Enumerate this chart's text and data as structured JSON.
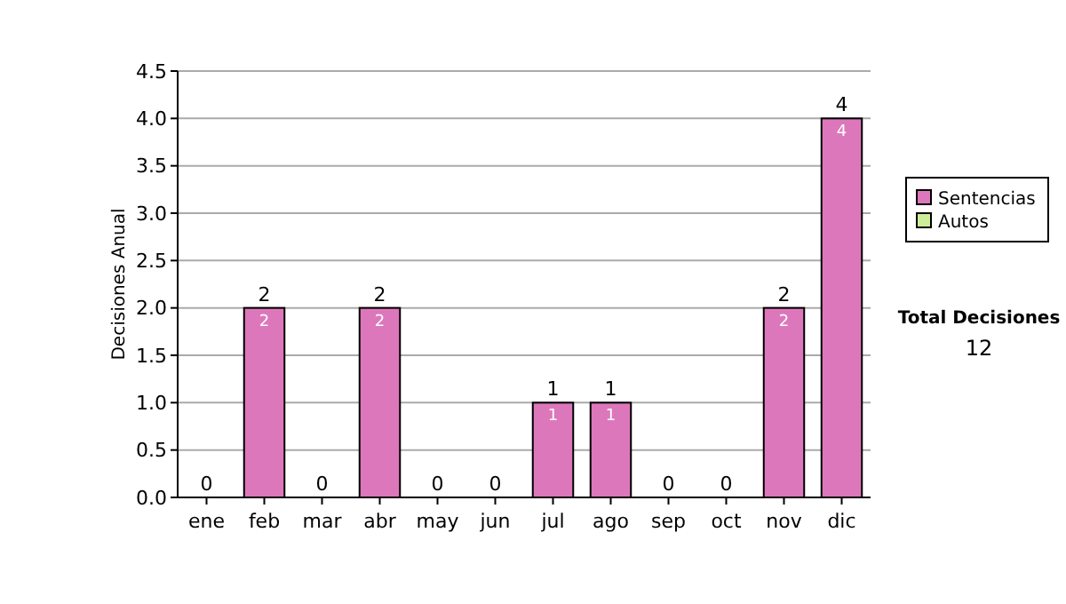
{
  "chart_data": {
    "type": "bar",
    "stacked": true,
    "ylabel": "Decisiones Anual",
    "categories": [
      "ene",
      "feb",
      "mar",
      "abr",
      "may",
      "jun",
      "jul",
      "ago",
      "sep",
      "oct",
      "nov",
      "dic"
    ],
    "series": [
      {
        "name": "Sentencias",
        "color": "#dd77bb",
        "values": [
          0,
          2,
          0,
          2,
          0,
          0,
          1,
          1,
          0,
          0,
          2,
          4
        ],
        "value_labels": [
          null,
          "2",
          null,
          "2",
          null,
          null,
          "1",
          "1",
          null,
          null,
          "2",
          "4"
        ]
      },
      {
        "name": "Autos",
        "color": "#ccee99",
        "values": [
          0,
          0,
          0,
          0,
          0,
          0,
          0,
          0,
          0,
          0,
          0,
          0
        ]
      }
    ],
    "totals": [
      "0",
      "2",
      "0",
      "2",
      "0",
      "0",
      "1",
      "1",
      "0",
      "0",
      "2",
      "4"
    ],
    "ylim": [
      0,
      4.5
    ],
    "yticks": [
      {
        "value": 0,
        "label": "0.0"
      },
      {
        "value": 0.5,
        "label": "0.5"
      },
      {
        "value": 1,
        "label": "1.0"
      },
      {
        "value": 1.5,
        "label": "1.5"
      },
      {
        "value": 2,
        "label": "2.0"
      },
      {
        "value": 2.5,
        "label": "2.5"
      },
      {
        "value": 3,
        "label": "3.0"
      },
      {
        "value": 3.5,
        "label": "3.5"
      },
      {
        "value": 4,
        "label": "4.0"
      },
      {
        "value": 4.5,
        "label": "4.5"
      }
    ],
    "grid": "y",
    "legend": "right",
    "annotations": [
      "Total Decisiones",
      "12"
    ]
  }
}
